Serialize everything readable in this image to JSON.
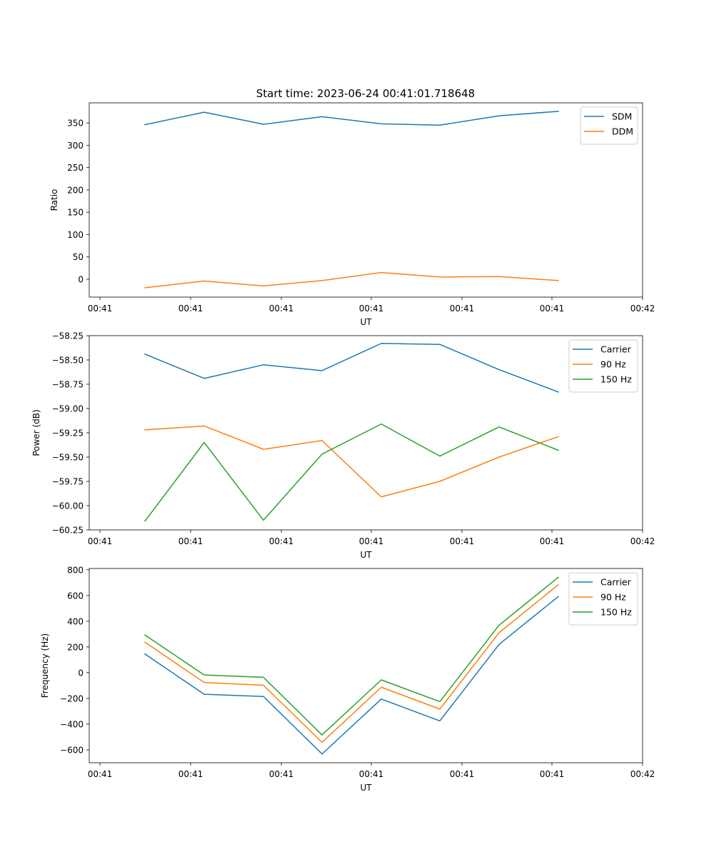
{
  "figure_title": "Start time: 2023-06-24 00:41:01.718648",
  "colors": {
    "blue": "#1f77b4",
    "orange": "#ff7f0e",
    "green": "#2ca02c"
  },
  "chart_data": [
    {
      "type": "line",
      "xlabel": "UT",
      "ylabel": "Ratio",
      "x_tick_labels": [
        "00:41",
        "00:41",
        "00:41",
        "00:41",
        "00:41",
        "00:41",
        "00:42"
      ],
      "ylim": [
        -40,
        395
      ],
      "y_ticks": [
        0,
        50,
        100,
        150,
        200,
        250,
        300,
        350
      ],
      "y_tick_labels": [
        "0",
        "50",
        "100",
        "150",
        "200",
        "250",
        "300",
        "350"
      ],
      "legend": "top-right",
      "grid": false,
      "series": [
        {
          "name": "SDM",
          "color": "#1f77b4",
          "values": [
            346,
            374,
            347,
            364,
            348,
            345,
            366,
            376
          ]
        },
        {
          "name": "DDM",
          "color": "#ff7f0e",
          "values": [
            -19,
            -4,
            -15,
            -3,
            15,
            5,
            6,
            -3
          ]
        }
      ]
    },
    {
      "type": "line",
      "xlabel": "UT",
      "ylabel": "Power (dB)",
      "x_tick_labels": [
        "00:41",
        "00:41",
        "00:41",
        "00:41",
        "00:41",
        "00:41",
        "00:42"
      ],
      "ylim": [
        -60.25,
        -58.25
      ],
      "y_ticks": [
        -60.25,
        -60.0,
        -59.75,
        -59.5,
        -59.25,
        -59.0,
        -58.75,
        -58.5,
        -58.25
      ],
      "y_tick_labels": [
        "−60.25",
        "−60.00",
        "−59.75",
        "−59.50",
        "−59.25",
        "−59.00",
        "−58.75",
        "−58.50",
        "−58.25"
      ],
      "legend": "top-right",
      "grid": false,
      "series": [
        {
          "name": "Carrier",
          "color": "#1f77b4",
          "values": [
            -58.44,
            -58.69,
            -58.55,
            -58.61,
            -58.33,
            -58.34,
            -58.6,
            -58.83
          ]
        },
        {
          "name": "90 Hz",
          "color": "#ff7f0e",
          "values": [
            -59.22,
            -59.18,
            -59.42,
            -59.33,
            -59.91,
            -59.75,
            -59.5,
            -59.29
          ]
        },
        {
          "name": "150 Hz",
          "color": "#2ca02c",
          "values": [
            -60.16,
            -59.35,
            -60.15,
            -59.47,
            -59.16,
            -59.49,
            -59.19,
            -59.43
          ]
        }
      ]
    },
    {
      "type": "line",
      "xlabel": "UT",
      "ylabel": "Frequency (Hz)",
      "x_tick_labels": [
        "00:41",
        "00:41",
        "00:41",
        "00:41",
        "00:41",
        "00:41",
        "00:42"
      ],
      "ylim": [
        -700,
        810
      ],
      "y_ticks": [
        -600,
        -400,
        -200,
        0,
        200,
        400,
        600,
        800
      ],
      "y_tick_labels": [
        "−600",
        "−400",
        "−200",
        "0",
        "200",
        "400",
        "600",
        "800"
      ],
      "legend": "top-right",
      "grid": false,
      "series": [
        {
          "name": "Carrier",
          "color": "#1f77b4",
          "values": [
            145,
            -168,
            -185,
            -632,
            -205,
            -375,
            220,
            592
          ]
        },
        {
          "name": "90 Hz",
          "color": "#ff7f0e",
          "values": [
            237,
            -76,
            -98,
            -541,
            -113,
            -283,
            311,
            684
          ]
        },
        {
          "name": "150 Hz",
          "color": "#2ca02c",
          "values": [
            293,
            -18,
            -36,
            -484,
            -56,
            -225,
            369,
            742
          ]
        }
      ]
    }
  ]
}
